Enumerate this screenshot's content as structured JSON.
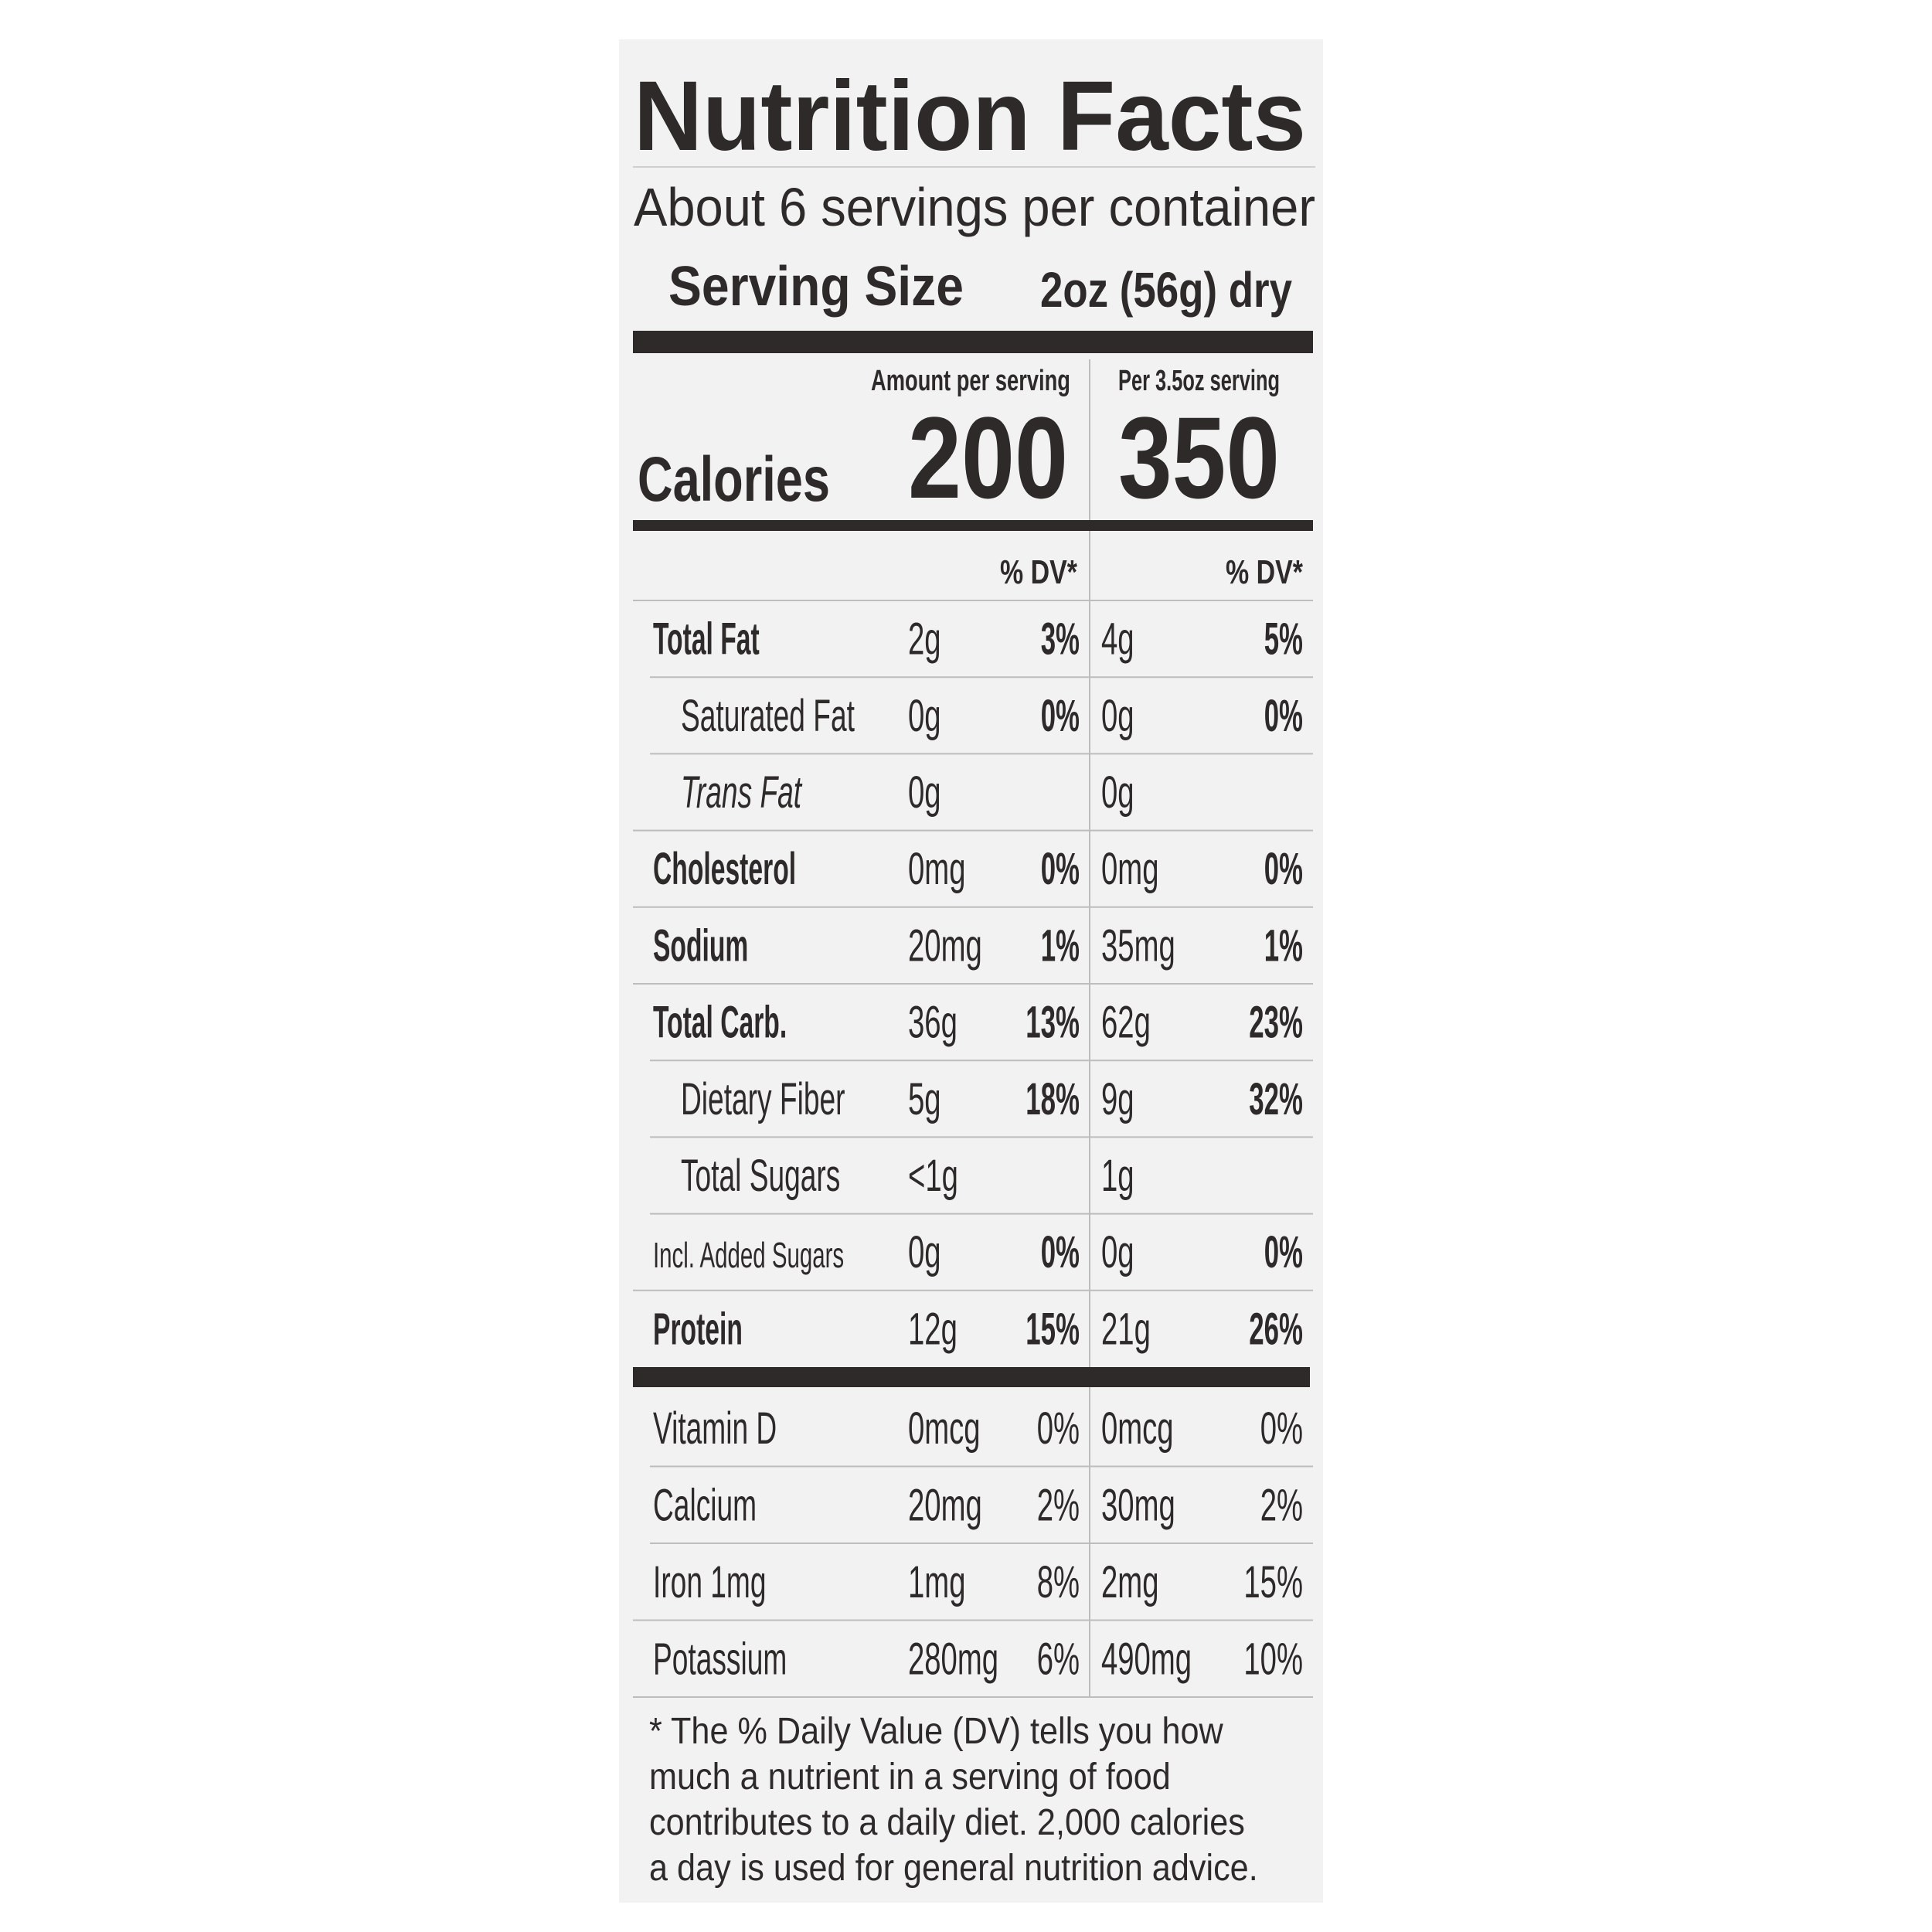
{
  "header": {
    "title": "Nutrition Facts",
    "servings": "About 6 servings per container",
    "serving_size_label": "Serving Size",
    "serving_size": "2oz (56g) dry"
  },
  "calories": {
    "label": "Calories",
    "column_1_header": "Amount per serving",
    "column_2_header": "Per 3.5oz serving",
    "column_1_value": "200",
    "column_2_value": "350"
  },
  "dv_headers": [
    "% DV*",
    "% DV*"
  ],
  "nutrients": [
    [
      "Total Fat",
      "2g",
      "3%",
      "4g",
      "5%"
    ],
    [
      "Saturated Fat",
      "0g",
      "0%",
      "0g",
      "0%"
    ],
    [
      "Trans Fat",
      "0g",
      null,
      "0g",
      null
    ],
    [
      "Cholesterol",
      "0mg",
      "0%",
      "0mg",
      "0%"
    ],
    [
      "Sodium",
      "20mg",
      "1%",
      "35mg",
      "1%"
    ],
    [
      "Total Carb.",
      "36g",
      "13%",
      "62g",
      "23%"
    ],
    [
      "Dietary Fiber",
      "5g",
      "18%",
      "9g",
      "32%"
    ],
    [
      "Total Sugars",
      "<1g",
      null,
      "1g",
      null
    ],
    [
      "Incl. Added Sugars",
      "0g",
      "0%",
      "0g",
      "0%"
    ],
    [
      "Protein",
      "12g",
      "15%",
      "21g",
      "26%"
    ]
  ],
  "vitamins": [
    [
      "Vitamin D",
      "0mcg",
      "0%",
      "0mcg",
      "0%"
    ],
    [
      "Calcium",
      "20mg",
      "2%",
      "30mg",
      "2%"
    ],
    [
      "Iron 1mg",
      "1mg",
      "8%",
      "2mg",
      "15%"
    ],
    [
      "Potassium",
      "280mg",
      "6%",
      "490mg",
      "10%"
    ]
  ],
  "footnote": [
    "* The % Daily Value (DV) tells you how",
    "much a nutrient in a serving of food",
    "contributes to a daily diet. 2,000 calories",
    "a day is used for general nutrition advice."
  ]
}
